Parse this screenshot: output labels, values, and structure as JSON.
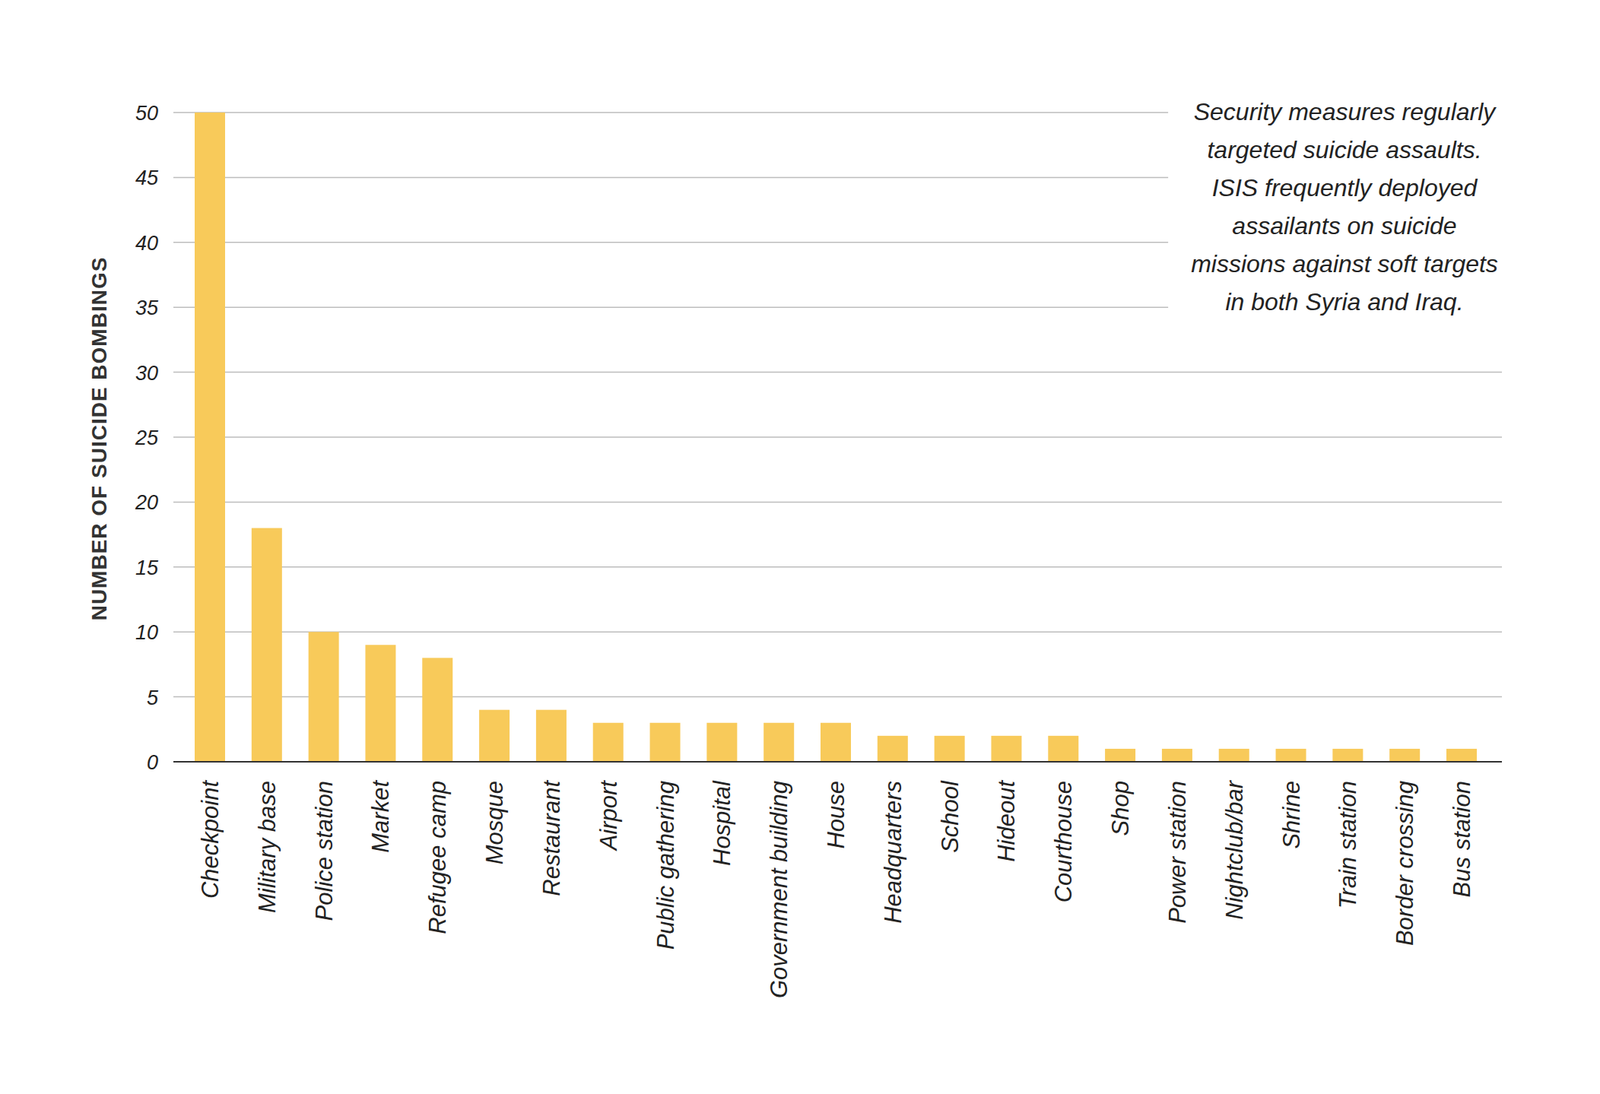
{
  "chart_data": {
    "type": "bar",
    "y_label": "NUMBER OF SUICIDE BOMBINGS",
    "annotation": "Security measures regularly targeted suicide assaults. ISIS frequently deployed assailants on suicide missions against soft targets in both Syria and Iraq.",
    "categories": [
      "Checkpoint",
      "Military base",
      "Police station",
      "Market",
      "Refugee camp",
      "Mosque",
      "Restaurant",
      "Airport",
      "Public gathering",
      "Hospital",
      "Government building",
      "House",
      "Headquarters",
      "School",
      "Hideout",
      "Courthouse",
      "Shop",
      "Power station",
      "Nightclub/bar",
      "Shrine",
      "Train station",
      "Border crossing",
      "Bus station"
    ],
    "values": [
      50,
      18,
      10,
      9,
      8,
      4,
      4,
      3,
      3,
      3,
      3,
      3,
      2,
      2,
      2,
      2,
      1,
      1,
      1,
      1,
      1,
      1,
      1
    ],
    "color": "#f8ca5a",
    "ylim": [
      0,
      50
    ],
    "yticks": [
      0,
      5,
      10,
      15,
      20,
      25,
      30,
      35,
      40,
      45,
      50
    ],
    "grid": true
  }
}
